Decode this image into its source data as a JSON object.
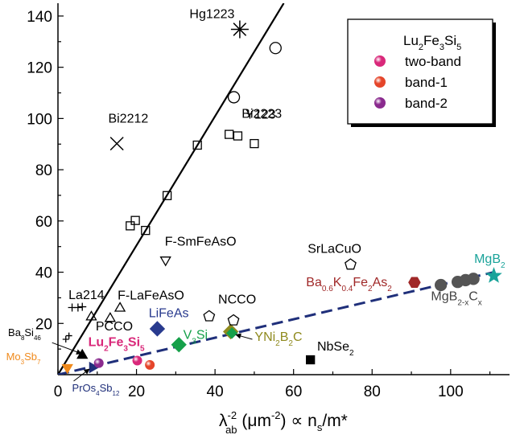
{
  "chart_data": {
    "type": "scatter",
    "xlabel_parts": [
      "λ",
      "-2",
      "ab",
      " (μm",
      "-2",
      ") ∝ n",
      "s",
      "/m*"
    ],
    "ylabel": "",
    "xlim": [
      0,
      115
    ],
    "ylim": [
      0,
      145
    ],
    "x_ticks": [
      0,
      20,
      40,
      60,
      80,
      100
    ],
    "y_ticks": [
      20,
      40,
      60,
      80,
      100,
      120,
      140
    ],
    "legend": {
      "title_parts": [
        "Lu",
        "2",
        "Fe",
        "3",
        "Si",
        "5"
      ],
      "entries": [
        {
          "label": "two-band",
          "color": "#d9287a"
        },
        {
          "label": "band-1",
          "color": "#e5452a"
        },
        {
          "label": "band-2",
          "color": "#8a2a8e"
        }
      ]
    },
    "lines": [
      {
        "name": "cuprate-trend",
        "style": "solid",
        "color": "#000000",
        "x": [
          0,
          57.5
        ],
        "y": [
          0,
          145
        ]
      },
      {
        "name": "pnictide-trend",
        "style": "dashed",
        "color": "#1f2f7a",
        "x": [
          0,
          111
        ],
        "y": [
          0,
          40
        ]
      }
    ],
    "markers": [
      {
        "shape": "asterisk",
        "x": 46.3,
        "y": 134.8,
        "color": "#000000",
        "size": 11
      },
      {
        "shape": "circle",
        "x": 55.4,
        "y": 127.5,
        "color": "#000000",
        "size": 7
      },
      {
        "shape": "circle",
        "x": 44.8,
        "y": 108.3,
        "color": "#000000",
        "size": 7
      },
      {
        "shape": "cross",
        "x": 15,
        "y": 90.2,
        "color": "#000000",
        "size": 8
      },
      {
        "shape": "square",
        "x": 43.6,
        "y": 93.8,
        "color": "#000000",
        "size": 5
      },
      {
        "shape": "square",
        "x": 45.8,
        "y": 93.2,
        "color": "#000000",
        "size": 5
      },
      {
        "shape": "square",
        "x": 50,
        "y": 90.2,
        "color": "#000000",
        "size": 5
      },
      {
        "shape": "square",
        "x": 35.5,
        "y": 89.6,
        "color": "#000000",
        "size": 5
      },
      {
        "shape": "square",
        "x": 27.8,
        "y": 69.9,
        "color": "#000000",
        "size": 5
      },
      {
        "shape": "square",
        "x": 19.7,
        "y": 60.2,
        "color": "#000000",
        "size": 5
      },
      {
        "shape": "square",
        "x": 18.4,
        "y": 58.1,
        "color": "#000000",
        "size": 5
      },
      {
        "shape": "square",
        "x": 22.3,
        "y": 56.3,
        "color": "#000000",
        "size": 5
      },
      {
        "shape": "tri-down",
        "x": 27.4,
        "y": 44.5,
        "color": "#000000",
        "size": 7
      },
      {
        "shape": "plus",
        "x": 3.6,
        "y": 26.2,
        "color": "#000000",
        "size": 5
      },
      {
        "shape": "plus",
        "x": 5.1,
        "y": 26.2,
        "color": "#000000",
        "size": 5
      },
      {
        "shape": "plus",
        "x": 6.2,
        "y": 26.5,
        "color": "#000000",
        "size": 5
      },
      {
        "shape": "tri-up",
        "x": 15.8,
        "y": 26.2,
        "color": "#000000",
        "size": 7
      },
      {
        "shape": "tri-up",
        "x": 8.5,
        "y": 22.8,
        "color": "#000000",
        "size": 7
      },
      {
        "shape": "tri-up",
        "x": 13.3,
        "y": 22.2,
        "color": "#000000",
        "size": 7
      },
      {
        "shape": "plus",
        "x": 2,
        "y": 13.8,
        "color": "#000000",
        "size": 4
      },
      {
        "shape": "plus",
        "x": 2.8,
        "y": 15.2,
        "color": "#000000",
        "size": 4
      },
      {
        "shape": "tri-up",
        "x": 6.2,
        "y": 7.8,
        "color": "#000000",
        "size": 7,
        "filled": true
      },
      {
        "shape": "tri-down",
        "x": 2.4,
        "y": 2.5,
        "color": "#f08a1c",
        "size": 7,
        "filled": true
      },
      {
        "shape": "tri-right",
        "x": 9,
        "y": 2.8,
        "color": "#1f2f7a",
        "size": 7,
        "filled": true
      },
      {
        "shape": "diamond",
        "x": 25.3,
        "y": 17.9,
        "color": "#283a8e",
        "size": 7,
        "filled": true
      },
      {
        "shape": "diamond",
        "x": 30.8,
        "y": 11.7,
        "color": "#16a04a",
        "size": 7,
        "filled": true
      },
      {
        "shape": "diamond",
        "x": 44,
        "y": 16.8,
        "color": "#8f8a1e",
        "size": 7,
        "filled": true
      },
      {
        "shape": "diamond",
        "x": 44.3,
        "y": 16.2,
        "color": "#16a04a",
        "size": 5,
        "filled": true
      },
      {
        "shape": "pentagon",
        "x": 38.5,
        "y": 22.8,
        "color": "#000000",
        "size": 7
      },
      {
        "shape": "pentagon",
        "x": 44.7,
        "y": 21.2,
        "color": "#000000",
        "size": 7
      },
      {
        "shape": "pentagon",
        "x": 74.5,
        "y": 43,
        "color": "#000000",
        "size": 7
      },
      {
        "shape": "square",
        "x": 64.3,
        "y": 5.8,
        "color": "#000000",
        "size": 5,
        "filled": true
      },
      {
        "shape": "hexagon",
        "x": 90.8,
        "y": 36,
        "color": "#a02828",
        "size": 7,
        "filled": true
      },
      {
        "shape": "circle",
        "x": 97.5,
        "y": 35,
        "color": "#555555",
        "size": 7,
        "filled": true
      },
      {
        "shape": "circle",
        "x": 101.8,
        "y": 36.2,
        "color": "#555555",
        "size": 7,
        "filled": true
      },
      {
        "shape": "circle",
        "x": 103.8,
        "y": 36.9,
        "color": "#555555",
        "size": 7,
        "filled": true
      },
      {
        "shape": "circle",
        "x": 105.8,
        "y": 37.4,
        "color": "#555555",
        "size": 7,
        "filled": true
      },
      {
        "shape": "star",
        "x": 111,
        "y": 38.6,
        "color": "#1aa39a",
        "size": 9,
        "filled": true
      },
      {
        "shape": "sphere",
        "x": 20.2,
        "y": 5.5,
        "color": "#d9287a",
        "size": 6
      },
      {
        "shape": "sphere",
        "x": 23.4,
        "y": 3.8,
        "color": "#e5452a",
        "size": 6
      },
      {
        "shape": "sphere",
        "x": 10.4,
        "y": 4.5,
        "color": "#8a2a8e",
        "size": 6
      }
    ],
    "labels": [
      {
        "parts": [
          "Hg1223"
        ],
        "x": 33.5,
        "y": 139.2,
        "color": "#000000"
      },
      {
        "parts": [
          "Bi2223"
        ],
        "x": 46.8,
        "y": 100.2,
        "color": "#000000"
      },
      {
        "parts": [
          "Bi2212"
        ],
        "x": 12.8,
        "y": 98.4,
        "color": "#000000"
      },
      {
        "parts": [
          "Y123"
        ],
        "x": 47.8,
        "y": 99.9,
        "color": "#000000"
      },
      {
        "parts": [
          "F-SmFeAsO"
        ],
        "x": 27.2,
        "y": 50.4,
        "color": "#000000"
      },
      {
        "parts": [
          "SrLaCuO"
        ],
        "x": 63.6,
        "y": 47.5,
        "color": "#000000"
      },
      {
        "parts": [
          "La214"
        ],
        "x": 2.7,
        "y": 29.5,
        "color": "#000000"
      },
      {
        "parts": [
          "F-LaFeAsO"
        ],
        "x": 15.2,
        "y": 29.4,
        "color": "#000000"
      },
      {
        "parts": [
          "NCCO"
        ],
        "x": 40.8,
        "y": 27.7,
        "color": "#000000"
      },
      {
        "parts": [
          "PCCO"
        ],
        "x": 9.6,
        "y": 17.3,
        "color": "#000000"
      },
      {
        "parts": [
          "LiFeAs"
        ],
        "x": 23.1,
        "y": 22.5,
        "color": "#283a8e"
      },
      {
        "parts": [
          "V",
          "3",
          "Si"
        ],
        "x": 31.9,
        "y": 13.9,
        "color": "#16a04a"
      },
      {
        "parts": [
          "Lu",
          "2",
          "Fe",
          "3",
          "Si",
          "5"
        ],
        "x": 7.7,
        "y": 11.2,
        "color": "#d9287a",
        "bold": true
      },
      {
        "parts": [
          "YNi",
          "2",
          "B",
          "2",
          "C"
        ],
        "x": 50.1,
        "y": 13.2,
        "color": "#8f8a1e"
      },
      {
        "parts": [
          "NbSe",
          "2"
        ],
        "x": 66,
        "y": 9.4,
        "color": "#000000"
      },
      {
        "parts": [
          "Ba",
          "8",
          "Si",
          "46"
        ],
        "x": -12.7,
        "y": 15.1,
        "color": "#000000",
        "small": true
      },
      {
        "parts": [
          "Mo",
          "3",
          "Sb",
          "7"
        ],
        "x": -13.2,
        "y": 5.7,
        "color": "#f08a1c",
        "small": true
      },
      {
        "parts": [
          "PrOs",
          "4",
          "Sb",
          "12"
        ],
        "x": 3.6,
        "y": -6.6,
        "color": "#1f2f7a",
        "small": true
      },
      {
        "parts": [
          "Ba",
          "0.6",
          "K",
          "0.4",
          "Fe",
          "2",
          "As",
          "2"
        ],
        "x": 63.2,
        "y": 34.5,
        "color": "#a02828"
      },
      {
        "parts": [
          "MgB",
          "2"
        ],
        "x": 106,
        "y": 43.6,
        "color": "#1aa39a"
      },
      {
        "parts": [
          "MgB",
          "2-x",
          "C",
          "x"
        ],
        "x": 95,
        "y": 29,
        "color": "#444444"
      }
    ],
    "arrows": [
      {
        "x1": -1.5,
        "y1": 12.5,
        "x2": 6,
        "y2": 8.2
      },
      {
        "x1": 4,
        "y1": -2.5,
        "x2": 8,
        "y2": 2.2
      },
      {
        "x1": 49.5,
        "y1": 13.8,
        "x2": 45.3,
        "y2": 15.6
      }
    ]
  }
}
